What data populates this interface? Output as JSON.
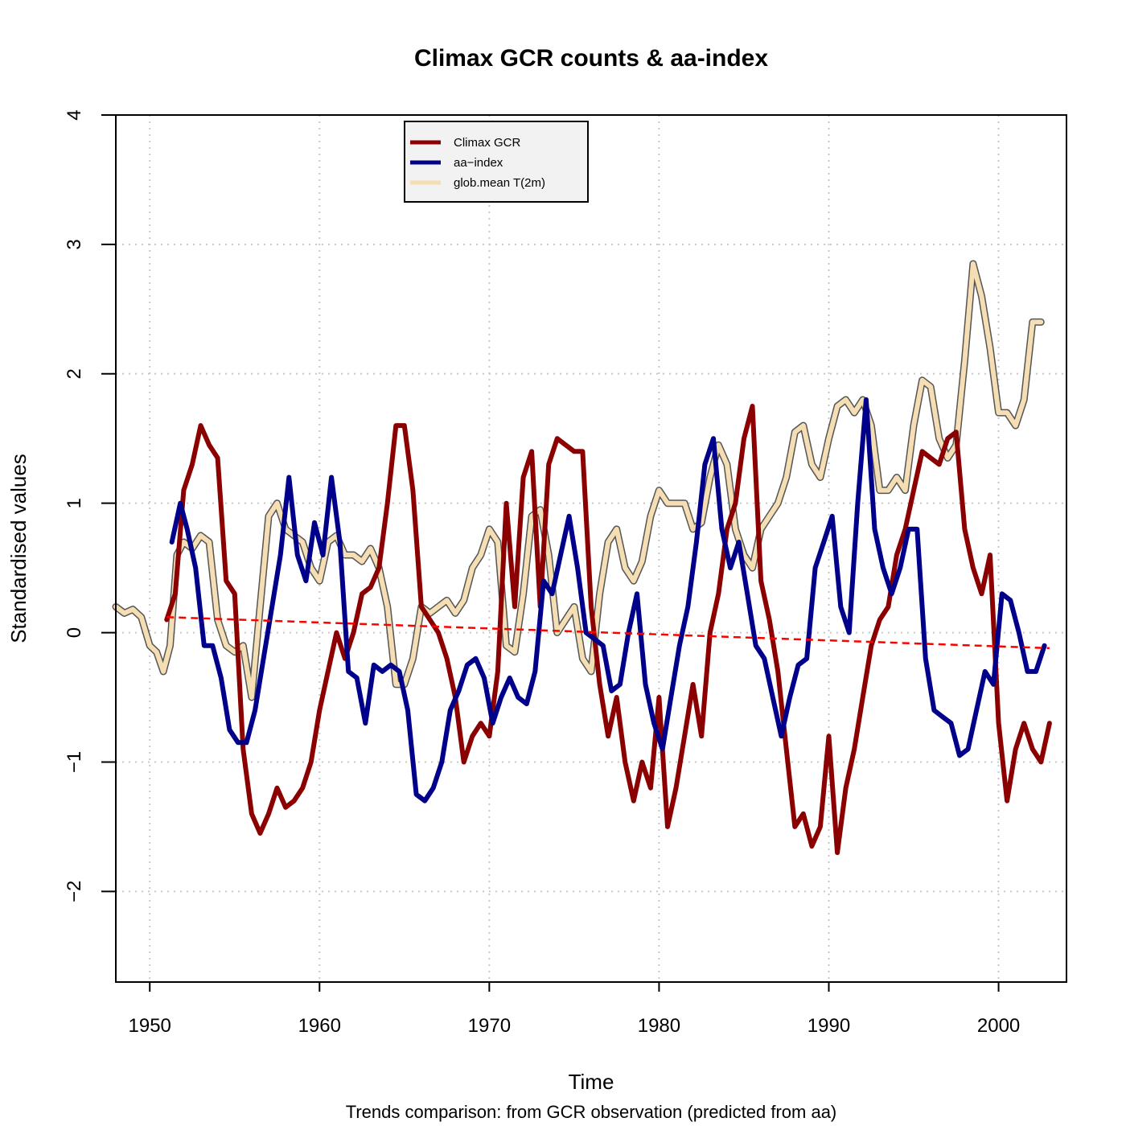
{
  "chart_data": {
    "type": "line",
    "title": "Climax GCR counts & aa-index",
    "xlabel": "Time",
    "ylabel": "Standardised values",
    "subtitle": "Trends comparison: from GCR observation (predicted from aa)",
    "xlim": [
      1948,
      2004
    ],
    "ylim": [
      -2.7,
      4
    ],
    "x_ticks": [
      1950,
      1960,
      1970,
      1980,
      1990,
      2000
    ],
    "y_ticks": [
      -2,
      -1,
      0,
      1,
      2,
      3,
      4
    ],
    "x_tick_labels": [
      "1950",
      "1960",
      "1970",
      "1980",
      "1990",
      "2000"
    ],
    "y_tick_labels": [
      "−2",
      "−1",
      "0",
      "1",
      "2",
      "3",
      "4"
    ],
    "grid": true,
    "legend_position": "top-left",
    "legend": [
      {
        "label": "Climax GCR",
        "color": "#8b0000"
      },
      {
        "label": "aa−index",
        "color": "#00008b"
      },
      {
        "label": "glob.mean T(2m)",
        "color": "#f5deb3"
      }
    ],
    "series": [
      {
        "name": "glob.mean T(2m)",
        "color": "#f5deb3",
        "outline_color": "#555555",
        "x": [
          1948,
          1948.5,
          1949,
          1949.5,
          1950,
          1950.4,
          1950.8,
          1951.2,
          1951.6,
          1952,
          1952.5,
          1953,
          1953.5,
          1954,
          1954.5,
          1955,
          1955.5,
          1956,
          1956.5,
          1957,
          1957.5,
          1958,
          1958.5,
          1959,
          1959.5,
          1960,
          1960.5,
          1961,
          1961.5,
          1962,
          1962.5,
          1963,
          1963.5,
          1964,
          1964.5,
          1965,
          1965.5,
          1966,
          1966.5,
          1967,
          1967.5,
          1968,
          1968.5,
          1969,
          1969.5,
          1970,
          1970.5,
          1971,
          1971.5,
          1972,
          1972.5,
          1973,
          1973.5,
          1974,
          1974.5,
          1975,
          1975.5,
          1976,
          1976.5,
          1977,
          1977.5,
          1978,
          1978.5,
          1979,
          1979.5,
          1980,
          1980.5,
          1981,
          1981.5,
          1982,
          1982.5,
          1983,
          1983.5,
          1984,
          1984.5,
          1985,
          1985.5,
          1986,
          1986.5,
          1987,
          1987.5,
          1988,
          1988.5,
          1989,
          1989.5,
          1990,
          1990.5,
          1991,
          1991.5,
          1992,
          1992.5,
          1993,
          1993.5,
          1994,
          1994.5,
          1995,
          1995.5,
          1996,
          1996.5,
          1997,
          1997.5,
          1998,
          1998.5,
          1999,
          1999.5,
          2000,
          2000.5,
          2001,
          2001.5,
          2002,
          2002.5
        ],
        "y": [
          0.2,
          0.15,
          0.18,
          0.12,
          -0.1,
          -0.15,
          -0.3,
          -0.1,
          0.6,
          0.7,
          0.65,
          0.75,
          0.7,
          0.1,
          -0.1,
          -0.15,
          -0.1,
          -0.5,
          0.2,
          0.9,
          1.0,
          0.8,
          0.75,
          0.7,
          0.5,
          0.4,
          0.7,
          0.75,
          0.6,
          0.6,
          0.55,
          0.65,
          0.5,
          0.2,
          -0.4,
          -0.4,
          -0.2,
          0.2,
          0.15,
          0.2,
          0.25,
          0.15,
          0.25,
          0.5,
          0.6,
          0.8,
          0.7,
          -0.1,
          -0.15,
          0.3,
          0.9,
          0.95,
          0.6,
          0.0,
          0.1,
          0.2,
          -0.2,
          -0.3,
          0.3,
          0.7,
          0.8,
          0.5,
          0.4,
          0.55,
          0.9,
          1.1,
          1.0,
          1.0,
          1.0,
          0.8,
          0.85,
          1.2,
          1.45,
          1.3,
          0.8,
          0.6,
          0.5,
          0.8,
          0.9,
          1.0,
          1.2,
          1.55,
          1.6,
          1.3,
          1.2,
          1.5,
          1.75,
          1.8,
          1.7,
          1.8,
          1.6,
          1.1,
          1.1,
          1.2,
          1.1,
          1.6,
          1.95,
          1.9,
          1.5,
          1.35,
          1.45,
          2.1,
          2.85,
          2.6,
          2.2,
          1.7,
          1.7,
          1.6,
          1.8,
          2.4,
          2.4
        ]
      },
      {
        "name": "Climax GCR",
        "color": "#8b0000",
        "x": [
          1951,
          1951.5,
          1952,
          1952.5,
          1953,
          1953.5,
          1954,
          1954.5,
          1955,
          1955.5,
          1956,
          1956.5,
          1957,
          1957.5,
          1958,
          1958.5,
          1959,
          1959.5,
          1960,
          1960.5,
          1961,
          1961.5,
          1962,
          1962.5,
          1963,
          1963.5,
          1964,
          1964.5,
          1965,
          1965.5,
          1966,
          1966.5,
          1967,
          1967.5,
          1968,
          1968.5,
          1969,
          1969.5,
          1970,
          1970.5,
          1971,
          1971.5,
          1972,
          1972.5,
          1973,
          1973.5,
          1974,
          1974.5,
          1975,
          1975.5,
          1976,
          1976.5,
          1977,
          1977.5,
          1978,
          1978.5,
          1979,
          1979.5,
          1980,
          1980.5,
          1981,
          1981.5,
          1982,
          1982.5,
          1983,
          1983.5,
          1984,
          1984.5,
          1985,
          1985.5,
          1986,
          1986.5,
          1987,
          1987.5,
          1988,
          1988.5,
          1989,
          1989.5,
          1990,
          1990.5,
          1991,
          1991.5,
          1992,
          1992.5,
          1993,
          1993.5,
          1994,
          1994.5,
          1995,
          1995.5,
          1996,
          1996.5,
          1997,
          1997.5,
          1998,
          1998.5,
          1999,
          1999.5,
          2000,
          2000.5,
          2001,
          2001.5,
          2002,
          2002.5,
          2003
        ],
        "y": [
          0.1,
          0.3,
          1.1,
          1.3,
          1.6,
          1.45,
          1.35,
          0.4,
          0.3,
          -0.9,
          -1.4,
          -1.55,
          -1.4,
          -1.2,
          -1.35,
          -1.3,
          -1.2,
          -1.0,
          -0.6,
          -0.3,
          0.0,
          -0.2,
          0.0,
          0.3,
          0.35,
          0.5,
          1.0,
          1.6,
          1.6,
          1.1,
          0.2,
          0.1,
          0.0,
          -0.2,
          -0.5,
          -1.0,
          -0.8,
          -0.7,
          -0.8,
          -0.3,
          1.0,
          0.2,
          1.2,
          1.4,
          0.2,
          1.3,
          1.5,
          1.45,
          1.4,
          1.4,
          0.2,
          -0.4,
          -0.8,
          -0.5,
          -1.0,
          -1.3,
          -1.0,
          -1.2,
          -0.5,
          -1.5,
          -1.2,
          -0.8,
          -0.4,
          -0.8,
          0.0,
          0.3,
          0.8,
          1.0,
          1.5,
          1.75,
          0.4,
          0.1,
          -0.3,
          -0.9,
          -1.5,
          -1.4,
          -1.65,
          -1.5,
          -0.8,
          -1.7,
          -1.2,
          -0.9,
          -0.5,
          -0.1,
          0.1,
          0.2,
          0.6,
          0.8,
          1.1,
          1.4,
          1.35,
          1.3,
          1.5,
          1.55,
          0.8,
          0.5,
          0.3,
          0.6,
          -0.7,
          -1.3,
          -0.9,
          -0.7,
          -0.9,
          -1.0,
          -0.7
        ]
      },
      {
        "name": "aa−index",
        "color": "#00008b",
        "x": [
          1951.3,
          1951.8,
          1952.2,
          1952.7,
          1953.2,
          1953.7,
          1954.2,
          1954.7,
          1955.2,
          1955.7,
          1956.2,
          1956.7,
          1957.2,
          1957.7,
          1958.2,
          1958.7,
          1959.2,
          1959.7,
          1960.2,
          1960.7,
          1961.2,
          1961.7,
          1962.2,
          1962.7,
          1963.2,
          1963.7,
          1964.2,
          1964.7,
          1965.2,
          1965.7,
          1966.2,
          1966.7,
          1967.2,
          1967.7,
          1968.2,
          1968.7,
          1969.2,
          1969.7,
          1970.2,
          1970.7,
          1971.2,
          1971.7,
          1972.2,
          1972.7,
          1973.2,
          1973.7,
          1974.2,
          1974.7,
          1975.2,
          1975.7,
          1976.2,
          1976.7,
          1977.2,
          1977.7,
          1978.2,
          1978.7,
          1979.2,
          1979.7,
          1980.2,
          1980.7,
          1981.2,
          1981.7,
          1982.2,
          1982.7,
          1983.2,
          1983.7,
          1984.2,
          1984.7,
          1985.2,
          1985.7,
          1986.2,
          1986.7,
          1987.2,
          1987.7,
          1988.2,
          1988.7,
          1989.2,
          1989.7,
          1990.2,
          1990.7,
          1991.2,
          1991.7,
          1992.2,
          1992.7,
          1993.2,
          1993.7,
          1994.2,
          1994.7,
          1995.2,
          1995.7,
          1996.2,
          1996.7,
          1997.2,
          1997.7,
          1998.2,
          1998.7,
          1999.2,
          1999.7,
          2000.2,
          2000.7,
          2001.2,
          2001.7,
          2002.2,
          2002.7
        ],
        "y": [
          0.7,
          1.0,
          0.8,
          0.5,
          -0.1,
          -0.1,
          -0.35,
          -0.75,
          -0.85,
          -0.85,
          -0.6,
          -0.2,
          0.2,
          0.6,
          1.2,
          0.6,
          0.4,
          0.85,
          0.6,
          1.2,
          0.7,
          -0.3,
          -0.35,
          -0.7,
          -0.25,
          -0.3,
          -0.25,
          -0.3,
          -0.6,
          -1.25,
          -1.3,
          -1.2,
          -1.0,
          -0.6,
          -0.45,
          -0.25,
          -0.2,
          -0.35,
          -0.7,
          -0.5,
          -0.35,
          -0.5,
          -0.55,
          -0.3,
          0.4,
          0.3,
          0.6,
          0.9,
          0.5,
          0.0,
          -0.05,
          -0.1,
          -0.45,
          -0.4,
          0.0,
          0.3,
          -0.4,
          -0.7,
          -0.9,
          -0.5,
          -0.1,
          0.2,
          0.7,
          1.3,
          1.5,
          0.8,
          0.5,
          0.7,
          0.3,
          -0.1,
          -0.2,
          -0.5,
          -0.8,
          -0.5,
          -0.25,
          -0.2,
          0.5,
          0.7,
          0.9,
          0.2,
          0.0,
          1.0,
          1.8,
          0.8,
          0.5,
          0.3,
          0.5,
          0.8,
          0.8,
          -0.2,
          -0.6,
          -0.65,
          -0.7,
          -0.95,
          -0.9,
          -0.6,
          -0.3,
          -0.4,
          0.3,
          0.25,
          0.0,
          -0.3,
          -0.3,
          -0.1
        ]
      }
    ],
    "trend": {
      "color": "#ff0000",
      "style": "dashed",
      "x": [
        1951,
        2003
      ],
      "y": [
        0.12,
        -0.12
      ]
    }
  }
}
